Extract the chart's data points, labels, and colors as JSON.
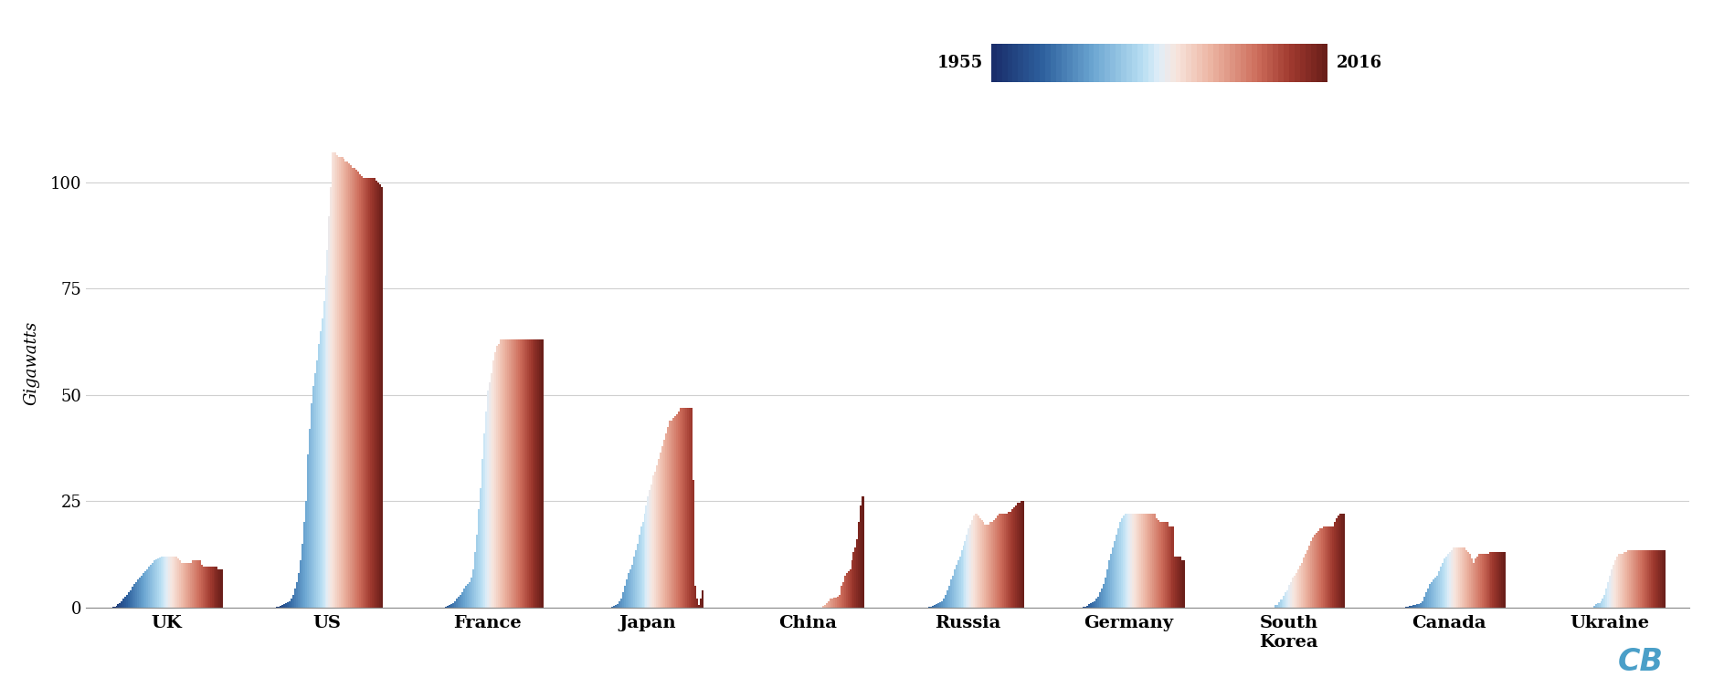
{
  "countries": [
    "UK",
    "US",
    "France",
    "Japan",
    "China",
    "Russia",
    "Germany",
    "South\nKorea",
    "Canada",
    "Ukraine"
  ],
  "start_year": 1955,
  "end_year": 2016,
  "ylim": [
    0,
    115
  ],
  "ylabel": "Gigawatts",
  "background_color": "#ffffff",
  "grid_color": "#d0d0d0",
  "watermark": "CB",
  "watermark_color": "#4a9fc8",
  "legend_1955": "1955",
  "legend_2016": "2016"
}
